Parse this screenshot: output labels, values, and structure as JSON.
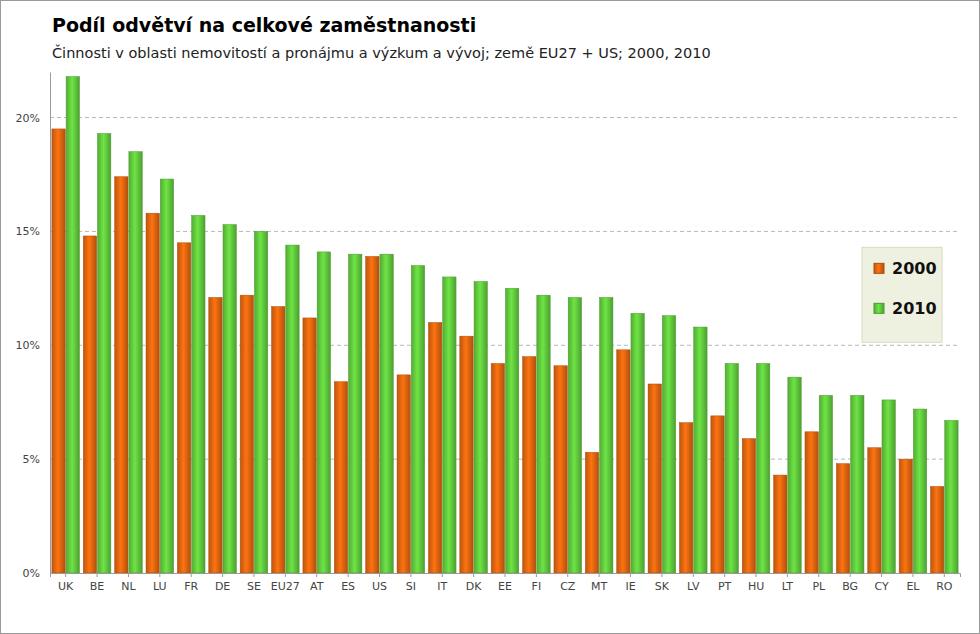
{
  "chart_data": {
    "type": "bar",
    "title": "Podíl odvětví na celkové zaměstnanosti",
    "subtitle": "Činnosti v oblasti nemovitostí a pronájmu a výzkum a vývoj; země EU27 + US; 2000, 2010",
    "categories": [
      "UK",
      "BE",
      "NL",
      "LU",
      "FR",
      "DE",
      "SE",
      "EU27",
      "AT",
      "ES",
      "US",
      "SI",
      "IT",
      "DK",
      "EE",
      "FI",
      "CZ",
      "MT",
      "IE",
      "SK",
      "LV",
      "PT",
      "HU",
      "LT",
      "PL",
      "BG",
      "CY",
      "EL",
      "RO"
    ],
    "series": [
      {
        "name": "2000",
        "color": "#d4600e",
        "values": [
          19.5,
          14.8,
          17.4,
          15.8,
          14.5,
          12.1,
          12.2,
          11.7,
          11.2,
          8.4,
          13.9,
          8.7,
          11.0,
          10.4,
          9.2,
          9.5,
          9.1,
          5.3,
          9.8,
          8.3,
          6.6,
          6.9,
          5.9,
          4.3,
          6.2,
          4.8,
          5.5,
          5.0,
          3.8
        ]
      },
      {
        "name": "2010",
        "color": "#5cbf3a",
        "values": [
          21.8,
          19.3,
          18.5,
          17.3,
          15.7,
          15.3,
          15.0,
          14.4,
          14.1,
          14.0,
          14.0,
          13.5,
          13.0,
          12.8,
          12.5,
          12.2,
          12.1,
          12.1,
          11.4,
          11.3,
          10.8,
          9.2,
          9.2,
          8.6,
          7.8,
          7.8,
          7.6,
          7.2,
          6.7
        ]
      }
    ],
    "ylim": [
      0,
      22
    ],
    "yticks": [
      {
        "value": 0,
        "label": "0%"
      },
      {
        "value": 5,
        "label": "5%"
      },
      {
        "value": 10,
        "label": "10%"
      },
      {
        "value": 15,
        "label": "15%"
      },
      {
        "value": 20,
        "label": "20%"
      }
    ],
    "grid": true,
    "legend": "right"
  }
}
